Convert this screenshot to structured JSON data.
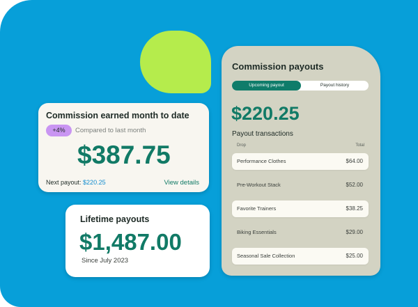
{
  "colors": {
    "background": "#079fd9",
    "accent_green": "#117a66",
    "lime": "#b5ec4c",
    "badge_purple": "#c995f2",
    "link_blue": "#118ccf"
  },
  "payouts_panel": {
    "title": "Commission payouts",
    "tabs": [
      {
        "label": "Upcoming payout",
        "active": true
      },
      {
        "label": "Payout history",
        "active": false
      }
    ],
    "amount": "$220.25",
    "subtitle": "Payout transactions",
    "columns": {
      "drop": "Drop",
      "total": "Total"
    },
    "transactions": [
      {
        "name": "Performance Clothes",
        "total": "$64.00"
      },
      {
        "name": "Pre-Workout Stack",
        "total": "$52.00"
      },
      {
        "name": "Favorite Trainers",
        "total": "$38.25"
      },
      {
        "name": "Biking Essentials",
        "total": "$29.00"
      },
      {
        "name": "Seasonal Sale Collection",
        "total": "$25.00"
      }
    ]
  },
  "earned_card": {
    "title": "Commission earned month to date",
    "badge": "+4%",
    "comparison": "Compared to last month",
    "amount": "$387.75",
    "next_payout_label": "Next payout:",
    "next_payout_value": "$220.25",
    "view_details": "View details"
  },
  "lifetime_card": {
    "title": "Lifetime payouts",
    "amount": "$1,487.00",
    "since": "Since July 2023"
  }
}
